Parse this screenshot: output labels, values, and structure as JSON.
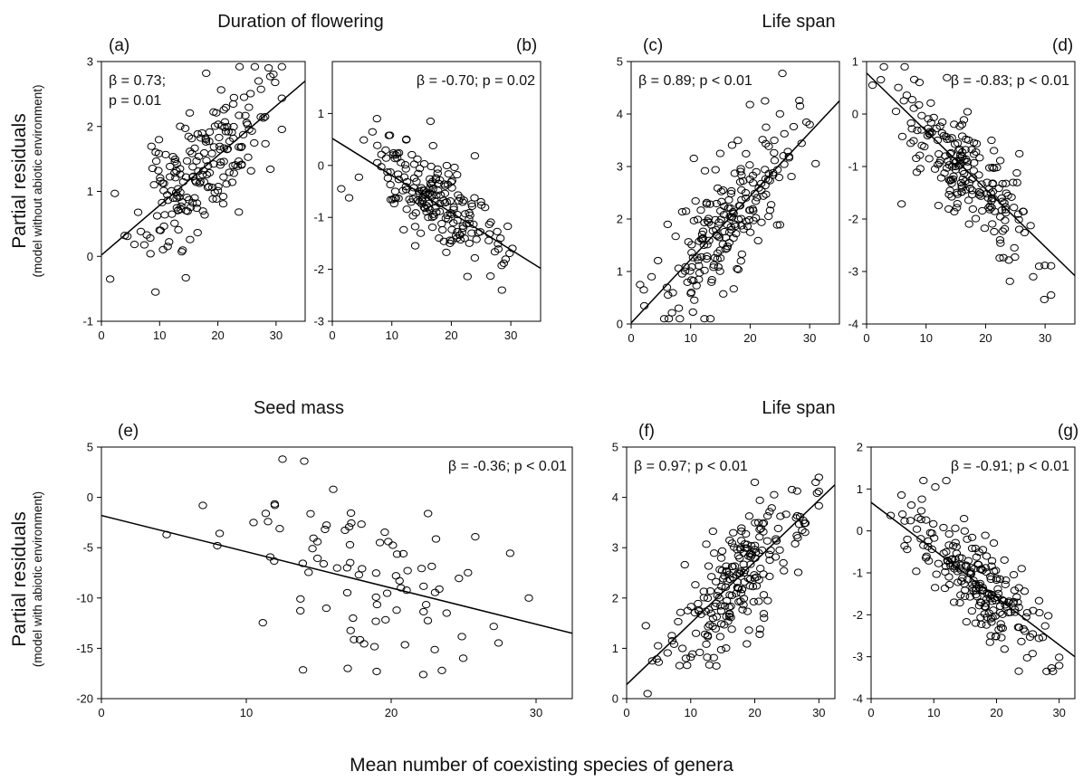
{
  "figure": {
    "group_titles": [
      "Duration of flowering",
      "Life span",
      "Seed mass",
      "Life span"
    ],
    "ylabel_top": {
      "main": "Partial residuals",
      "sub": "(model without abiotic environment)"
    },
    "ylabel_bottom": {
      "main": "Partial residuals",
      "sub": "(model with abiotic environment)"
    },
    "xlabel": "Mean number of coexisting species of genera"
  },
  "chart_data": [
    {
      "type": "scatter",
      "panel": "(a)",
      "title": "Duration of flowering",
      "annotation": [
        "β = 0.73;",
        "p = 0.01"
      ],
      "xlim": [
        0,
        35
      ],
      "ylim": [
        -1,
        3
      ],
      "xticks": [
        0,
        10,
        20,
        30
      ],
      "yticks": [
        -1,
        0,
        1,
        2,
        3
      ],
      "fit": {
        "x": [
          0,
          35
        ],
        "y": [
          0.02,
          2.7
        ]
      },
      "cloud": {
        "n": 200,
        "x_mean": 17,
        "x_sd": 5.5,
        "x_min": 1,
        "x_max": 31,
        "resid_sd": 0.45,
        "seed": 11
      },
      "fixed_points": [
        [
          1.5,
          -0.35
        ],
        [
          14.5,
          -0.33
        ],
        [
          18,
          2.82
        ],
        [
          27,
          2.7
        ]
      ]
    },
    {
      "type": "scatter",
      "panel": "(b)",
      "title": "",
      "annotation": [
        "β = -0.70; p = 0.02"
      ],
      "xlim": [
        0,
        35
      ],
      "ylim": [
        -3,
        2
      ],
      "xticks": [
        0,
        10,
        20,
        30
      ],
      "yticks": [
        -3,
        -2,
        -1,
        0,
        1
      ],
      "fit": {
        "x": [
          0,
          35
        ],
        "y": [
          0.52,
          -1.98
        ]
      },
      "cloud": {
        "n": 200,
        "x_mean": 17,
        "x_sd": 5.5,
        "x_min": 1,
        "x_max": 31,
        "resid_sd": 0.42,
        "seed": 23
      },
      "fixed_points": [
        [
          1.5,
          -0.45
        ],
        [
          7.5,
          0.9
        ],
        [
          16.5,
          0.85
        ],
        [
          28.5,
          -2.4
        ]
      ]
    },
    {
      "type": "scatter",
      "panel": "(c)",
      "title": "Life span",
      "annotation": [
        "β = 0.89; p < 0.01"
      ],
      "xlim": [
        0,
        35
      ],
      "ylim": [
        0,
        5
      ],
      "xticks": [
        0,
        10,
        20,
        30
      ],
      "yticks": [
        0,
        1,
        2,
        3,
        4,
        5
      ],
      "fit": {
        "x": [
          0,
          35
        ],
        "y": [
          0.02,
          4.25
        ]
      },
      "cloud": {
        "n": 210,
        "x_mean": 17,
        "x_sd": 5.5,
        "x_min": 1,
        "x_max": 31,
        "resid_sd": 0.6,
        "seed": 37
      },
      "fixed_points": [
        [
          1.5,
          0.75
        ],
        [
          8,
          0.3
        ],
        [
          22.5,
          4.25
        ],
        [
          30,
          3.8
        ]
      ]
    },
    {
      "type": "scatter",
      "panel": "(d)",
      "title": "",
      "annotation": [
        "β = -0.83; p < 0.01"
      ],
      "xlim": [
        0,
        35
      ],
      "ylim": [
        -4,
        1
      ],
      "xticks": [
        0,
        10,
        20,
        30
      ],
      "yticks": [
        -4,
        -3,
        -2,
        -1,
        0,
        1
      ],
      "fit": {
        "x": [
          0,
          35
        ],
        "y": [
          0.78,
          -3.08
        ]
      },
      "cloud": {
        "n": 210,
        "x_mean": 17,
        "x_sd": 5.5,
        "x_min": 1,
        "x_max": 31,
        "resid_sd": 0.55,
        "seed": 41
      },
      "fixed_points": [
        [
          1,
          0.55
        ],
        [
          12,
          1.2
        ],
        [
          28,
          -3.1
        ],
        [
          29,
          -2.9
        ]
      ]
    },
    {
      "type": "scatter",
      "panel": "(e)",
      "title": "Seed mass",
      "annotation": [
        "β = -0.36; p < 0.01"
      ],
      "xlim": [
        0,
        32.5
      ],
      "ylim": [
        -20,
        5
      ],
      "xticks": [
        0,
        10,
        20,
        30
      ],
      "yticks": [
        -20,
        -15,
        -10,
        -5,
        0,
        5
      ],
      "fit": {
        "x": [
          0,
          32.5
        ],
        "y": [
          -1.8,
          -13.5
        ]
      },
      "cloud": {
        "n": 80,
        "x_mean": 18,
        "x_sd": 4.5,
        "x_min": 4,
        "x_max": 30,
        "resid_sd": 3.6,
        "seed": 53
      },
      "fixed_points": [
        [
          4.5,
          -3.7
        ],
        [
          7,
          -0.8
        ],
        [
          8,
          -4.8
        ],
        [
          10.5,
          -2.5
        ],
        [
          11.5,
          -2.4
        ],
        [
          12.5,
          3.8
        ],
        [
          14,
          3.6
        ],
        [
          16,
          0.8
        ],
        [
          29.5,
          -10
        ],
        [
          17,
          -17
        ],
        [
          19,
          -17.3
        ],
        [
          23.5,
          -17.2
        ]
      ]
    },
    {
      "type": "scatter",
      "panel": "(f)",
      "title": "Life span",
      "annotation": [
        "β = 0.97; p < 0.01"
      ],
      "xlim": [
        0,
        32.5
      ],
      "ylim": [
        0,
        5
      ],
      "xticks": [
        0,
        10,
        20,
        30
      ],
      "yticks": [
        0,
        1,
        2,
        3,
        4,
        5
      ],
      "fit": {
        "x": [
          0,
          32.5
        ],
        "y": [
          0.28,
          4.25
        ]
      },
      "cloud": {
        "n": 220,
        "x_mean": 17,
        "x_sd": 5.5,
        "x_min": 3,
        "x_max": 30,
        "resid_sd": 0.55,
        "seed": 67
      },
      "fixed_points": [
        [
          4,
          0.75
        ],
        [
          20,
          4.3
        ],
        [
          29.5,
          4.3
        ],
        [
          14,
          0.65
        ]
      ]
    },
    {
      "type": "scatter",
      "panel": "(g)",
      "title": "",
      "annotation": [
        "β = -0.91; p < 0.01"
      ],
      "xlim": [
        0,
        32.5
      ],
      "ylim": [
        -4,
        2
      ],
      "xticks": [
        0,
        10,
        20,
        30
      ],
      "yticks": [
        -4,
        -3,
        -2,
        -1,
        0,
        1,
        2
      ],
      "fit": {
        "x": [
          0,
          32.5
        ],
        "y": [
          0.68,
          -3.0
        ]
      },
      "cloud": {
        "n": 220,
        "x_mean": 17,
        "x_sd": 5.5,
        "x_min": 3,
        "x_max": 30,
        "resid_sd": 0.5,
        "seed": 79
      },
      "fixed_points": [
        [
          12,
          1.2
        ],
        [
          28,
          -3.35
        ],
        [
          29,
          -3.35
        ],
        [
          5,
          0.4
        ]
      ]
    }
  ]
}
